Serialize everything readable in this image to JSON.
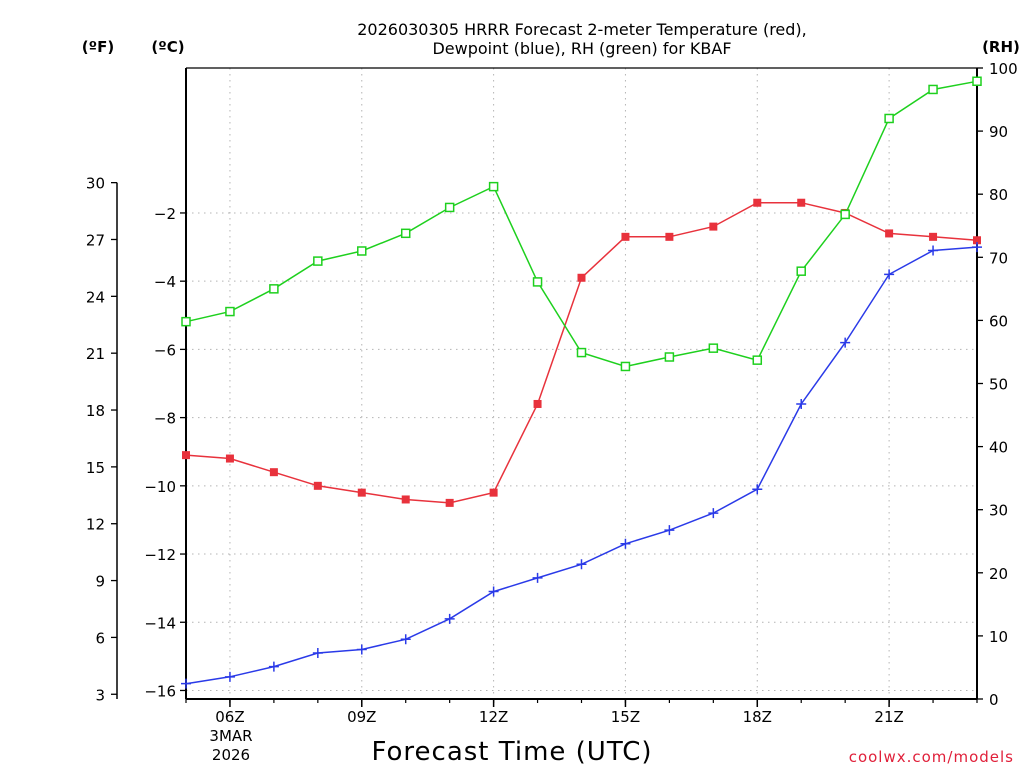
{
  "chart_data": {
    "type": "line",
    "title_line1": "2026030305 HRRR Forecast 2-meter Temperature (red),",
    "title_line2": "Dewpoint (blue), RH (green) for KBAF",
    "xlabel": "Forecast Time (UTC)",
    "credit": "coolwx.com/models",
    "left_outer_unit": "(ºF)",
    "left_inner_unit": "(ºC)",
    "right_unit": "(RH)",
    "x_hours": [
      5,
      6,
      7,
      8,
      9,
      10,
      11,
      12,
      13,
      14,
      15,
      16,
      17,
      18,
      19,
      20,
      21,
      22,
      23
    ],
    "xlim": [
      5,
      23
    ],
    "x_ticks": [
      {
        "hour": 6,
        "label": "06Z"
      },
      {
        "hour": 9,
        "label": "09Z"
      },
      {
        "hour": 12,
        "label": "12Z"
      },
      {
        "hour": 15,
        "label": "15Z"
      },
      {
        "hour": 18,
        "label": "18Z"
      },
      {
        "hour": 21,
        "label": "21Z"
      }
    ],
    "date_label_line1": "3MAR",
    "date_label_line2": "2026",
    "celsius_axis": {
      "ylim": [
        -16.25,
        2.25
      ],
      "ticks": [
        -2,
        -4,
        -6,
        -8,
        -10,
        -12,
        -14,
        -16
      ],
      "tick_labels": [
        "−2",
        "−4",
        "−6",
        "−8",
        "−10",
        "−12",
        "−14",
        "−16"
      ]
    },
    "fahrenheit_axis": {
      "ticks": [
        30,
        27,
        24,
        21,
        18,
        15,
        12,
        9,
        6,
        3
      ],
      "tick_labels": [
        "30",
        "27",
        "24",
        "21",
        "18",
        "15",
        "12",
        "9",
        "6",
        "3"
      ]
    },
    "rh_axis": {
      "ylim": [
        0,
        100
      ],
      "ticks": [
        0,
        10,
        20,
        30,
        40,
        50,
        60,
        70,
        80,
        90,
        100
      ],
      "tick_labels": [
        "0",
        "10",
        "20",
        "30",
        "40",
        "50",
        "60",
        "70",
        "80",
        "90",
        "100"
      ]
    },
    "series": [
      {
        "name": "Temperature",
        "unit": "C",
        "color": "#e8323c",
        "marker": "filled-square",
        "values": [
          -9.1,
          -9.2,
          -9.6,
          -10.0,
          -10.2,
          -10.4,
          -10.5,
          -10.2,
          -7.6,
          -3.9,
          -2.7,
          -2.7,
          -2.4,
          -1.7,
          -1.7,
          -2.0,
          -2.6,
          -2.7,
          -2.8
        ]
      },
      {
        "name": "Dewpoint",
        "unit": "C",
        "color": "#2a3ae8",
        "marker": "plus",
        "values": [
          -15.8,
          -15.6,
          -15.3,
          -14.9,
          -14.8,
          -14.5,
          -13.9,
          -13.1,
          -12.7,
          -12.3,
          -11.7,
          -11.3,
          -10.8,
          -10.1,
          -7.6,
          -5.8,
          -3.8,
          -3.1,
          -3.0
        ]
      },
      {
        "name": "RH",
        "unit": "%",
        "color": "#1ed01e",
        "marker": "open-square",
        "values": [
          59.8,
          61.4,
          65.0,
          69.4,
          71.0,
          73.8,
          77.9,
          81.2,
          66.1,
          54.9,
          52.7,
          54.2,
          55.6,
          53.7,
          67.8,
          76.8,
          92.0,
          96.6,
          97.9
        ]
      }
    ]
  }
}
